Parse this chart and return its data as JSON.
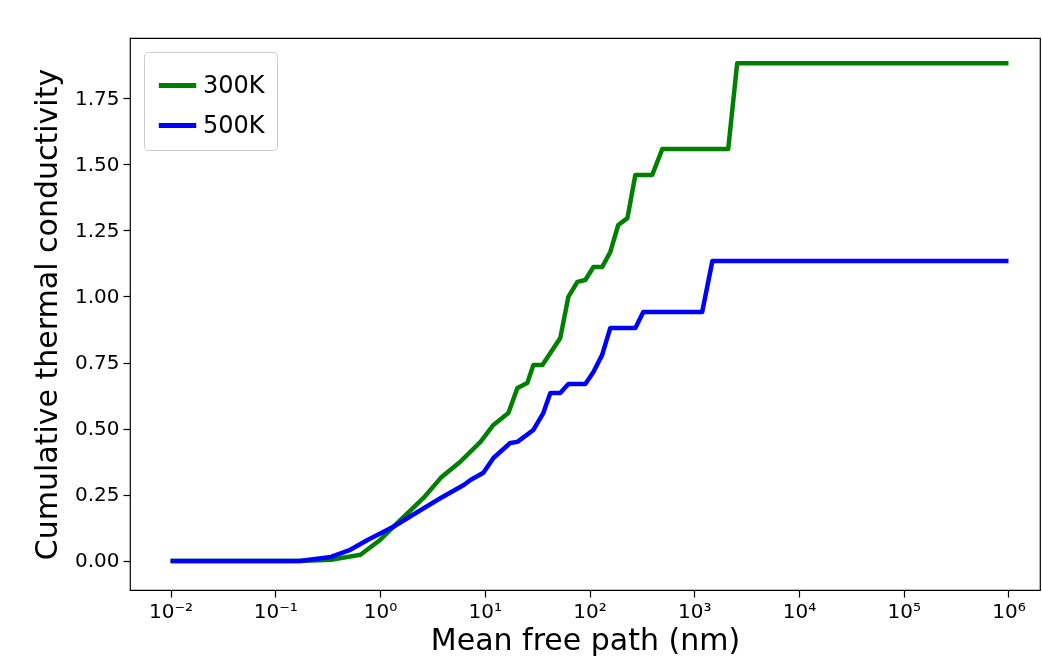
{
  "chart_data": {
    "type": "line",
    "xlabel": "Mean free path (nm)",
    "ylabel": "Cumulative thermal conductivity",
    "log": "x",
    "grid": false,
    "legend": "top left",
    "line_style": "solid",
    "marker": "none",
    "xlim": [
      0.0041,
      2000000
    ],
    "ylim": [
      -0.11,
      1.977
    ],
    "xticks": [
      {
        "value": 0.01,
        "label": "10⁻²"
      },
      {
        "value": 0.1,
        "label": "10⁻¹"
      },
      {
        "value": 1,
        "label": "10⁰"
      },
      {
        "value": 10,
        "label": "10¹"
      },
      {
        "value": 100,
        "label": "10²"
      },
      {
        "value": 1000,
        "label": "10³"
      },
      {
        "value": 10000,
        "label": "10⁴"
      },
      {
        "value": 100000,
        "label": "10⁵"
      },
      {
        "value": 1000000,
        "label": "10⁶"
      }
    ],
    "yticks": [
      {
        "value": 0,
        "label": "0.00"
      },
      {
        "value": 0.25,
        "label": "0.25"
      },
      {
        "value": 0.5,
        "label": "0.50"
      },
      {
        "value": 0.75,
        "label": "0.75"
      },
      {
        "value": 1,
        "label": "1.00"
      },
      {
        "value": 1.25,
        "label": "1.25"
      },
      {
        "value": 1.5,
        "label": "1.50"
      },
      {
        "value": 1.75,
        "label": "1.75"
      }
    ],
    "series": [
      {
        "name": "300K",
        "color": "#008000",
        "x": [
          0.01,
          0.17,
          0.34,
          0.65,
          1.0,
          1.57,
          2.6,
          3.8,
          5.8,
          9.1,
          12.1,
          16.8,
          20.5,
          25.5,
          29.1,
          35.5,
          42.3,
          52.6,
          62.8,
          76.6,
          91.2,
          109,
          132,
          158,
          188,
          230,
          274,
          397,
          495,
          2110,
          2570,
          1000000
        ],
        "values": [
          0,
          0,
          0.004,
          0.023,
          0.079,
          0.155,
          0.238,
          0.314,
          0.374,
          0.45,
          0.514,
          0.559,
          0.654,
          0.673,
          0.741,
          0.741,
          0.786,
          0.843,
          0.998,
          1.055,
          1.062,
          1.111,
          1.111,
          1.168,
          1.27,
          1.296,
          1.459,
          1.459,
          1.557,
          1.557,
          1.882,
          1.882
        ]
      },
      {
        "name": "500K",
        "color": "#0000ff",
        "x": [
          0.01,
          0.17,
          0.34,
          0.52,
          0.76,
          1.34,
          2.28,
          3.8,
          6.3,
          7.3,
          9.7,
          12.1,
          17.5,
          20.5,
          29.1,
          36.2,
          42.3,
          52.6,
          62.8,
          91.2,
          109,
          132,
          158,
          274,
          326,
          1190,
          1490,
          1000000
        ],
        "values": [
          0,
          0,
          0.015,
          0.042,
          0.079,
          0.129,
          0.185,
          0.238,
          0.287,
          0.306,
          0.333,
          0.389,
          0.446,
          0.45,
          0.495,
          0.559,
          0.635,
          0.635,
          0.669,
          0.669,
          0.714,
          0.779,
          0.881,
          0.881,
          0.941,
          0.941,
          1.134,
          1.134
        ]
      }
    ]
  }
}
